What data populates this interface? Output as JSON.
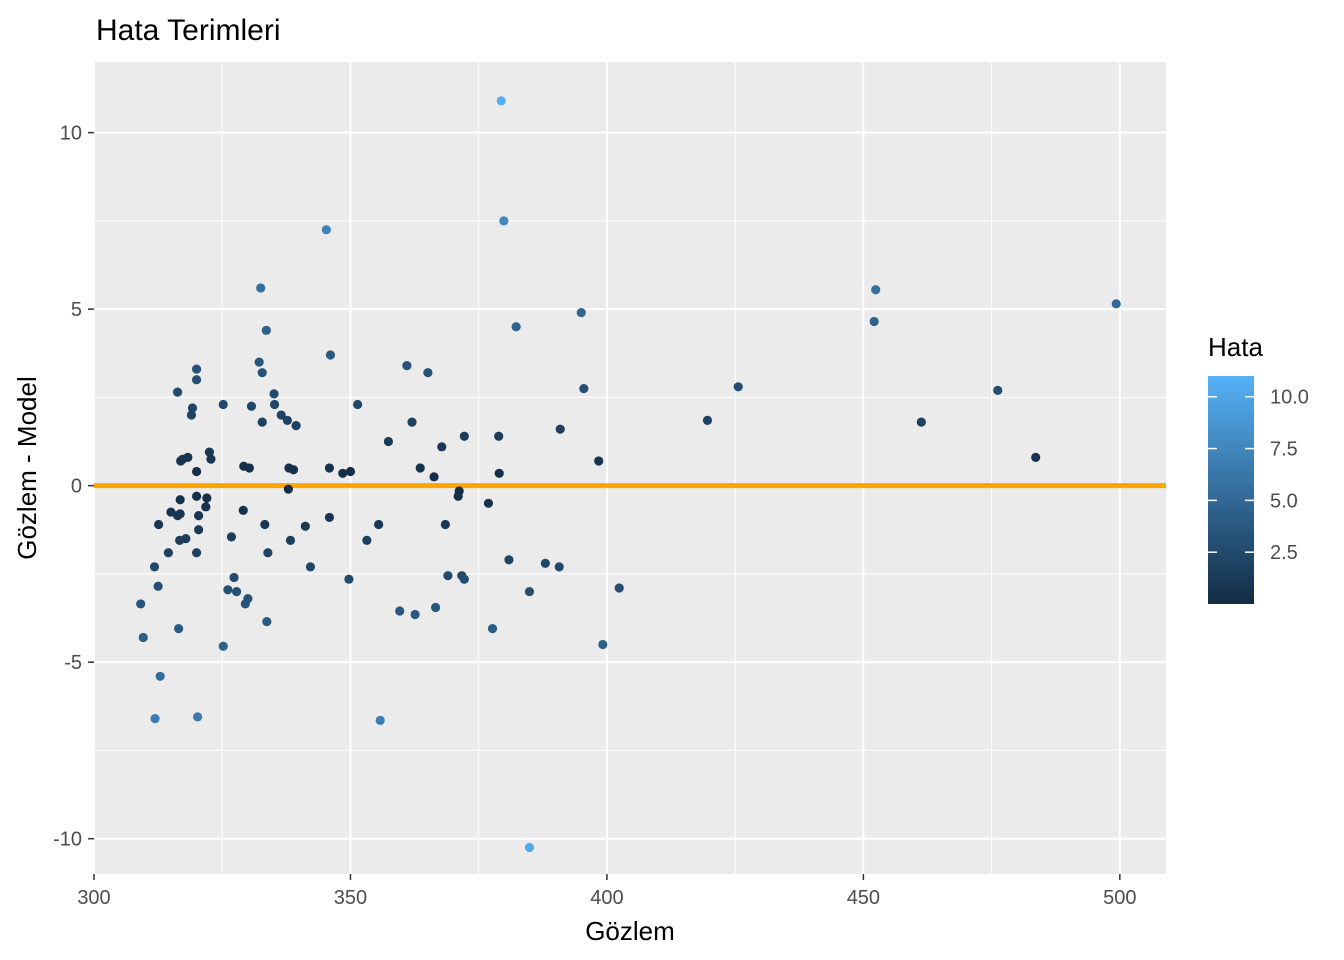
{
  "chart_data": {
    "type": "scatter",
    "title": "Hata Terimleri",
    "xlabel": "Gözlem",
    "ylabel": "Gözlem - Model",
    "xlim": [
      300,
      509
    ],
    "ylim": [
      -11,
      12
    ],
    "x_ticks": [
      300,
      350,
      400,
      450,
      500
    ],
    "x_tick_labels": [
      "300",
      "350",
      "400",
      "450",
      "500"
    ],
    "y_ticks": [
      -10,
      -5,
      0,
      5,
      10
    ],
    "y_tick_labels": [
      "-10",
      "-5",
      "0",
      "5",
      "10"
    ],
    "grid": true,
    "reference_line": {
      "y": 0,
      "color": "#FFA500"
    },
    "legend": {
      "title": "Hata",
      "position": "right",
      "type": "colorbar",
      "range": [
        0,
        11
      ],
      "breaks": [
        2.5,
        5.0,
        7.5,
        10.0
      ],
      "break_labels": [
        "2.5",
        "5.0",
        "7.5",
        "10.0"
      ],
      "low_color": "#132B43",
      "high_color": "#56B1F7"
    },
    "points": [
      {
        "x": 379.4,
        "y": 10.9
      },
      {
        "x": 379.9,
        "y": 7.5
      },
      {
        "x": 345.3,
        "y": 7.25
      },
      {
        "x": 332.5,
        "y": 5.6
      },
      {
        "x": 452.4,
        "y": 5.55
      },
      {
        "x": 499.3,
        "y": 5.15
      },
      {
        "x": 395.0,
        "y": 4.9
      },
      {
        "x": 452.1,
        "y": 4.65
      },
      {
        "x": 382.3,
        "y": 4.5
      },
      {
        "x": 333.6,
        "y": 4.4
      },
      {
        "x": 346.1,
        "y": 3.7
      },
      {
        "x": 332.2,
        "y": 3.5
      },
      {
        "x": 361.0,
        "y": 3.4
      },
      {
        "x": 320.0,
        "y": 3.3
      },
      {
        "x": 332.8,
        "y": 3.2
      },
      {
        "x": 365.1,
        "y": 3.2
      },
      {
        "x": 320.0,
        "y": 3.0
      },
      {
        "x": 425.6,
        "y": 2.8
      },
      {
        "x": 395.5,
        "y": 2.75
      },
      {
        "x": 316.3,
        "y": 2.65
      },
      {
        "x": 335.1,
        "y": 2.6
      },
      {
        "x": 476.2,
        "y": 2.7
      },
      {
        "x": 325.2,
        "y": 2.3
      },
      {
        "x": 351.4,
        "y": 2.3
      },
      {
        "x": 335.2,
        "y": 2.3
      },
      {
        "x": 330.7,
        "y": 2.25
      },
      {
        "x": 319.2,
        "y": 2.2
      },
      {
        "x": 319.0,
        "y": 2.0
      },
      {
        "x": 336.5,
        "y": 2.0
      },
      {
        "x": 337.7,
        "y": 1.85
      },
      {
        "x": 332.8,
        "y": 1.8
      },
      {
        "x": 362.0,
        "y": 1.8
      },
      {
        "x": 419.6,
        "y": 1.85
      },
      {
        "x": 461.3,
        "y": 1.8
      },
      {
        "x": 339.4,
        "y": 1.7
      },
      {
        "x": 390.9,
        "y": 1.6
      },
      {
        "x": 372.2,
        "y": 1.4
      },
      {
        "x": 378.9,
        "y": 1.4
      },
      {
        "x": 357.4,
        "y": 1.25
      },
      {
        "x": 367.8,
        "y": 1.1
      },
      {
        "x": 322.5,
        "y": 0.95
      },
      {
        "x": 318.3,
        "y": 0.8
      },
      {
        "x": 317.3,
        "y": 0.75
      },
      {
        "x": 316.9,
        "y": 0.7
      },
      {
        "x": 322.8,
        "y": 0.75
      },
      {
        "x": 483.6,
        "y": 0.8
      },
      {
        "x": 398.4,
        "y": 0.7
      },
      {
        "x": 329.2,
        "y": 0.55
      },
      {
        "x": 330.3,
        "y": 0.5
      },
      {
        "x": 338.0,
        "y": 0.5
      },
      {
        "x": 338.9,
        "y": 0.45
      },
      {
        "x": 345.9,
        "y": 0.5
      },
      {
        "x": 348.5,
        "y": 0.35
      },
      {
        "x": 350.0,
        "y": 0.4
      },
      {
        "x": 363.6,
        "y": 0.5
      },
      {
        "x": 379.0,
        "y": 0.35
      },
      {
        "x": 320.0,
        "y": 0.4
      },
      {
        "x": 366.3,
        "y": 0.25
      },
      {
        "x": 337.9,
        "y": -0.1
      },
      {
        "x": 371.2,
        "y": -0.15
      },
      {
        "x": 320.0,
        "y": -0.3
      },
      {
        "x": 322.0,
        "y": -0.35
      },
      {
        "x": 316.8,
        "y": -0.4
      },
      {
        "x": 371.0,
        "y": -0.3
      },
      {
        "x": 376.9,
        "y": -0.5
      },
      {
        "x": 321.8,
        "y": -0.6
      },
      {
        "x": 329.1,
        "y": -0.7
      },
      {
        "x": 315.0,
        "y": -0.75
      },
      {
        "x": 316.3,
        "y": -0.85
      },
      {
        "x": 316.8,
        "y": -0.8
      },
      {
        "x": 320.4,
        "y": -0.85
      },
      {
        "x": 345.9,
        "y": -0.9
      },
      {
        "x": 312.6,
        "y": -1.1
      },
      {
        "x": 333.3,
        "y": -1.1
      },
      {
        "x": 341.2,
        "y": -1.15
      },
      {
        "x": 355.5,
        "y": -1.1
      },
      {
        "x": 368.5,
        "y": -1.1
      },
      {
        "x": 320.4,
        "y": -1.25
      },
      {
        "x": 326.8,
        "y": -1.45
      },
      {
        "x": 316.7,
        "y": -1.55
      },
      {
        "x": 317.9,
        "y": -1.5
      },
      {
        "x": 338.3,
        "y": -1.55
      },
      {
        "x": 353.2,
        "y": -1.55
      },
      {
        "x": 314.5,
        "y": -1.9
      },
      {
        "x": 320.0,
        "y": -1.9
      },
      {
        "x": 333.9,
        "y": -1.9
      },
      {
        "x": 380.9,
        "y": -2.1
      },
      {
        "x": 388.0,
        "y": -2.2
      },
      {
        "x": 390.7,
        "y": -2.3
      },
      {
        "x": 311.8,
        "y": -2.3
      },
      {
        "x": 342.2,
        "y": -2.3
      },
      {
        "x": 327.3,
        "y": -2.6
      },
      {
        "x": 349.7,
        "y": -2.65
      },
      {
        "x": 369.0,
        "y": -2.55
      },
      {
        "x": 371.7,
        "y": -2.55
      },
      {
        "x": 372.2,
        "y": -2.65
      },
      {
        "x": 312.5,
        "y": -2.85
      },
      {
        "x": 326.1,
        "y": -2.95
      },
      {
        "x": 327.8,
        "y": -3.0
      },
      {
        "x": 384.9,
        "y": -3.0
      },
      {
        "x": 402.4,
        "y": -2.9
      },
      {
        "x": 330.0,
        "y": -3.2
      },
      {
        "x": 329.5,
        "y": -3.35
      },
      {
        "x": 309.1,
        "y": -3.35
      },
      {
        "x": 359.6,
        "y": -3.55
      },
      {
        "x": 362.6,
        "y": -3.65
      },
      {
        "x": 366.6,
        "y": -3.45
      },
      {
        "x": 333.7,
        "y": -3.85
      },
      {
        "x": 316.5,
        "y": -4.05
      },
      {
        "x": 377.7,
        "y": -4.05
      },
      {
        "x": 309.6,
        "y": -4.3
      },
      {
        "x": 325.2,
        "y": -4.55
      },
      {
        "x": 399.2,
        "y": -4.5
      },
      {
        "x": 312.9,
        "y": -5.4
      },
      {
        "x": 311.9,
        "y": -6.6
      },
      {
        "x": 320.2,
        "y": -6.55
      },
      {
        "x": 355.8,
        "y": -6.65
      },
      {
        "x": 384.9,
        "y": -10.25
      }
    ]
  }
}
